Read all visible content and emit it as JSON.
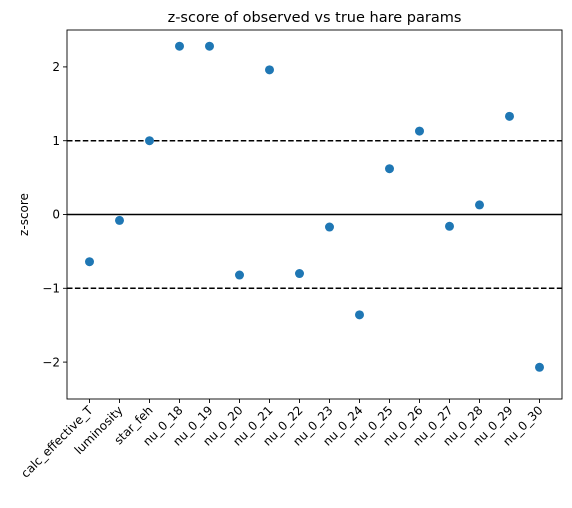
{
  "chart_data": {
    "type": "scatter",
    "title": "z-score of observed vs true hare params",
    "xlabel": "",
    "ylabel": "z-score",
    "categories": [
      "calc_effective_T",
      "luminosity",
      "star_feh",
      "nu_0_18",
      "nu_0_19",
      "nu_0_20",
      "nu_0_21",
      "nu_0_22",
      "nu_0_23",
      "nu_0_24",
      "nu_0_25",
      "nu_0_26",
      "nu_0_27",
      "nu_0_28",
      "nu_0_29",
      "nu_0_30"
    ],
    "values": [
      -0.64,
      -0.08,
      1.0,
      2.28,
      2.28,
      -0.82,
      1.96,
      -0.8,
      -0.17,
      -1.36,
      0.62,
      1.13,
      -0.16,
      0.13,
      1.33,
      -2.07
    ],
    "ylim": [
      -2.5,
      2.5
    ],
    "yticks": [
      -2,
      -1,
      0,
      1,
      2
    ],
    "ytick_labels": [
      "−2",
      "−1",
      "0",
      "1",
      "2"
    ],
    "reference_lines": [
      {
        "y": 1,
        "style": "dashed"
      },
      {
        "y": 0,
        "style": "solid"
      },
      {
        "y": -1,
        "style": "dashed"
      }
    ],
    "marker_color": "#1f77b4",
    "grid": false,
    "legend": "none"
  }
}
